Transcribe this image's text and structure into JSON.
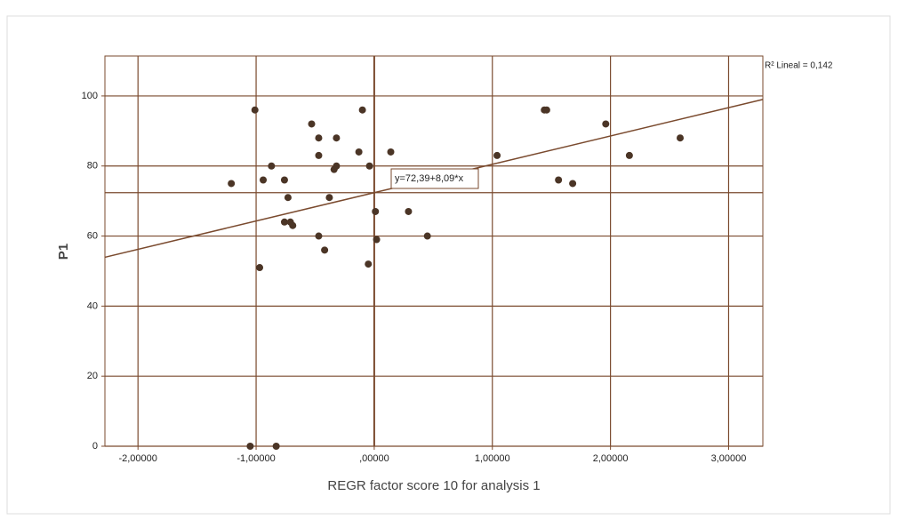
{
  "chart_data": {
    "type": "scatter",
    "xlabel": "REGR factor score  10 for analysis 1",
    "ylabel": "P1",
    "x": [
      -1.21,
      -1.01,
      -0.87,
      -0.94,
      -0.97,
      -0.76,
      -0.73,
      -0.76,
      -0.71,
      -0.69,
      -1.05,
      -0.83,
      -0.53,
      -0.47,
      -0.47,
      -0.47,
      -0.42,
      -0.38,
      -0.32,
      -0.34,
      -0.32,
      -0.13,
      -0.1,
      -0.04,
      -0.05,
      0.01,
      0.02,
      0.14,
      0.29,
      0.45,
      1.04,
      1.44,
      1.46,
      1.56,
      1.68,
      1.96,
      2.16,
      2.59
    ],
    "values": [
      75,
      96,
      80,
      76,
      51,
      76,
      71,
      64,
      64,
      63,
      0,
      0,
      92,
      88,
      83,
      60,
      56,
      71,
      88,
      79,
      80,
      84,
      96,
      80,
      52,
      67,
      59,
      84,
      67,
      60,
      83,
      96,
      96,
      76,
      75,
      92,
      83,
      88
    ],
    "color": "#4b3526",
    "xlim": [
      -2.28,
      3.29
    ],
    "ylim": [
      0,
      111.4
    ],
    "xticks": [
      {
        "value": -2,
        "label": "-2,00000"
      },
      {
        "value": -1,
        "label": "-1,00000"
      },
      {
        "value": 0,
        "label": ",00000"
      },
      {
        "value": 1,
        "label": "1,00000"
      },
      {
        "value": 2,
        "label": "2,00000"
      },
      {
        "value": 3,
        "label": "3,00000"
      }
    ],
    "yticks": [
      0,
      20,
      40,
      60,
      80,
      100
    ],
    "grid": true,
    "fit": {
      "intercept": 72.39,
      "slope": 8.09,
      "label": "y=72,39+8,09*x"
    },
    "r2_label": "R² Lineal = 0,142"
  }
}
